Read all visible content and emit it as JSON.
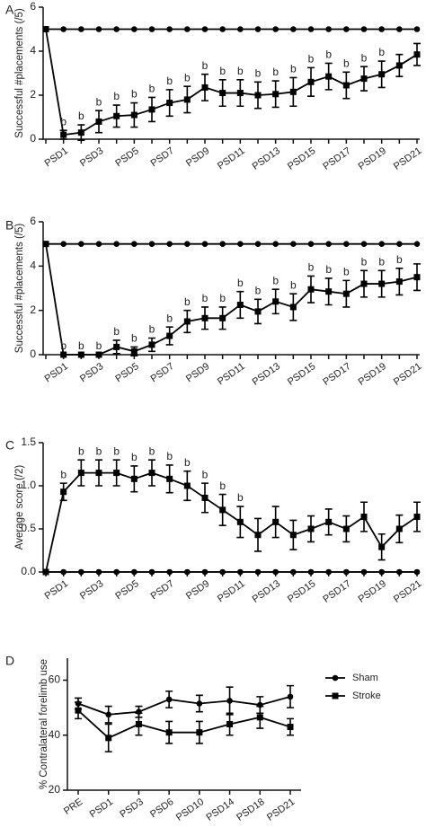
{
  "chart_data": [
    {
      "type": "line",
      "label": "A",
      "y_label": "Successful #placements (/5)",
      "categories": [
        null,
        "PSD1",
        null,
        "PSD3",
        null,
        "PSD5",
        null,
        "PSD7",
        null,
        "PSD9",
        null,
        "PSD11",
        null,
        "PSD13",
        null,
        "PSD15",
        null,
        "PSD17",
        null,
        "PSD19",
        null,
        "PSD21"
      ],
      "ylim": [
        0,
        6
      ],
      "yticks": [
        0,
        2,
        4,
        6
      ],
      "series": [
        {
          "color": "#000000",
          "marker": "circle",
          "values": [
            5,
            5,
            5,
            5,
            5,
            5,
            5,
            5,
            5,
            5,
            5,
            5,
            5,
            5,
            5,
            5,
            5,
            5,
            5,
            5,
            5,
            5
          ],
          "errors": [
            0,
            0,
            0,
            0,
            0,
            0,
            0,
            0,
            0,
            0,
            0,
            0,
            0,
            0,
            0,
            0,
            0,
            0,
            0,
            0,
            0,
            0
          ]
        },
        {
          "color": "#000000",
          "marker": "square",
          "values": [
            5,
            0.2,
            0.3,
            0.8,
            1.05,
            1.1,
            1.35,
            1.65,
            1.8,
            2.35,
            2.1,
            2.1,
            2.0,
            2.05,
            2.15,
            2.6,
            2.85,
            2.45,
            2.75,
            2.95,
            3.35,
            3.85
          ],
          "errors": [
            0,
            0.2,
            0.35,
            0.5,
            0.5,
            0.55,
            0.55,
            0.6,
            0.6,
            0.6,
            0.6,
            0.6,
            0.6,
            0.6,
            0.65,
            0.65,
            0.6,
            0.6,
            0.55,
            0.6,
            0.5,
            0.5
          ]
        }
      ],
      "annotations": [
        null,
        "b",
        "b",
        "b",
        "b",
        "b",
        "b",
        "b",
        "b",
        "b",
        "b",
        "b",
        "b",
        "b",
        "b",
        "b",
        "b",
        "b",
        "b",
        "b",
        null,
        null
      ]
    },
    {
      "type": "line",
      "label": "B",
      "y_label": "Successful #placements (/5)",
      "categories": [
        null,
        "PSD1",
        null,
        "PSD3",
        null,
        "PSD5",
        null,
        "PSD7",
        null,
        "PSD9",
        null,
        "PSD11",
        null,
        "PSD13",
        null,
        "PSD15",
        null,
        "PSD17",
        null,
        "PSD19",
        null,
        "PSD21"
      ],
      "ylim": [
        0,
        6
      ],
      "yticks": [
        0,
        2,
        4,
        6
      ],
      "series": [
        {
          "color": "#000000",
          "marker": "circle",
          "values": [
            5,
            5,
            5,
            5,
            5,
            5,
            5,
            5,
            5,
            5,
            5,
            5,
            5,
            5,
            5,
            5,
            5,
            5,
            5,
            5,
            5,
            5
          ],
          "errors": [
            0,
            0,
            0,
            0,
            0,
            0,
            0,
            0,
            0,
            0,
            0,
            0,
            0,
            0,
            0,
            0,
            0,
            0,
            0,
            0,
            0,
            0
          ]
        },
        {
          "color": "#000000",
          "marker": "square",
          "values": [
            5,
            0,
            0,
            0,
            0.35,
            0.15,
            0.45,
            0.85,
            1.5,
            1.65,
            1.65,
            2.25,
            1.95,
            2.4,
            2.15,
            2.95,
            2.85,
            2.75,
            3.2,
            3.2,
            3.3,
            3.5
          ],
          "errors": [
            0,
            0,
            0,
            0,
            0.3,
            0.2,
            0.3,
            0.4,
            0.5,
            0.5,
            0.5,
            0.6,
            0.55,
            0.55,
            0.6,
            0.6,
            0.6,
            0.6,
            0.6,
            0.6,
            0.6,
            0.6
          ]
        }
      ],
      "annotations": [
        null,
        "b",
        "b",
        "b",
        "b",
        "b",
        "b",
        "b",
        "b",
        "b",
        "b",
        "b",
        "b",
        "b",
        "b",
        "b",
        "b",
        "b",
        "b",
        "b",
        "b",
        null
      ]
    },
    {
      "type": "line",
      "label": "C",
      "y_label": "Average score (/2)",
      "categories": [
        null,
        "PSD1",
        null,
        "PSD3",
        null,
        "PSD5",
        null,
        "PSD7",
        null,
        "PSD9",
        null,
        "PSD11",
        null,
        "PSD13",
        null,
        "PSD15",
        null,
        "PSD17",
        null,
        "PSD19",
        null,
        "PSD21"
      ],
      "ylim": [
        0,
        1.5
      ],
      "yticks": [
        {
          "value": 0,
          "label": "0.0"
        },
        0.5,
        {
          "value": 1,
          "label": "1.0"
        },
        1.5
      ],
      "series": [
        {
          "color": "#000000",
          "marker": "circle",
          "values": [
            0,
            0,
            0,
            0,
            0,
            0,
            0,
            0,
            0,
            0,
            0,
            0,
            0,
            0,
            0,
            0,
            0,
            0,
            0,
            0,
            0,
            0
          ],
          "errors": [
            0,
            0,
            0,
            0,
            0,
            0,
            0,
            0,
            0,
            0,
            0,
            0,
            0,
            0,
            0,
            0,
            0,
            0,
            0,
            0,
            0,
            0
          ]
        },
        {
          "color": "#000000",
          "marker": "square",
          "values": [
            0,
            0.93,
            1.15,
            1.15,
            1.15,
            1.08,
            1.15,
            1.08,
            1.0,
            0.86,
            0.72,
            0.58,
            0.43,
            0.58,
            0.43,
            0.5,
            0.58,
            0.5,
            0.64,
            0.29,
            0.5,
            0.64
          ],
          "errors": [
            0,
            0.1,
            0.15,
            0.15,
            0.15,
            0.15,
            0.15,
            0.16,
            0.17,
            0.17,
            0.18,
            0.18,
            0.19,
            0.18,
            0.17,
            0.15,
            0.15,
            0.15,
            0.17,
            0.15,
            0.16,
            0.17
          ]
        }
      ],
      "annotations": [
        null,
        "b",
        "b",
        "b",
        "b",
        "b",
        "b",
        "b",
        "b",
        "b",
        "b",
        "b",
        null,
        null,
        null,
        null,
        null,
        null,
        null,
        null,
        null,
        null
      ]
    },
    {
      "type": "line",
      "label": "D",
      "y_label": "% Contralateral forelimb use",
      "categories": [
        "PRE",
        "PSD1",
        "PSD3",
        "PSD6",
        "PSD10",
        "PSD14",
        "PSD18",
        "PSD21"
      ],
      "ylim": [
        20,
        68
      ],
      "yticks": [
        20,
        40,
        60
      ],
      "legend": "right",
      "series": [
        {
          "name": "Sham",
          "color": "#000000",
          "marker": "circle",
          "values": [
            51.5,
            47.5,
            48.5,
            53,
            51.5,
            52.5,
            51,
            54
          ],
          "errors": [
            2,
            3,
            2,
            3,
            3,
            5,
            3,
            4
          ]
        },
        {
          "name": "Stroke",
          "color": "#000000",
          "marker": "square",
          "values": [
            49,
            39,
            44,
            41,
            41,
            44,
            46.5,
            43
          ],
          "errors": [
            3,
            5,
            4,
            4,
            4,
            4,
            4,
            3
          ]
        }
      ]
    }
  ]
}
